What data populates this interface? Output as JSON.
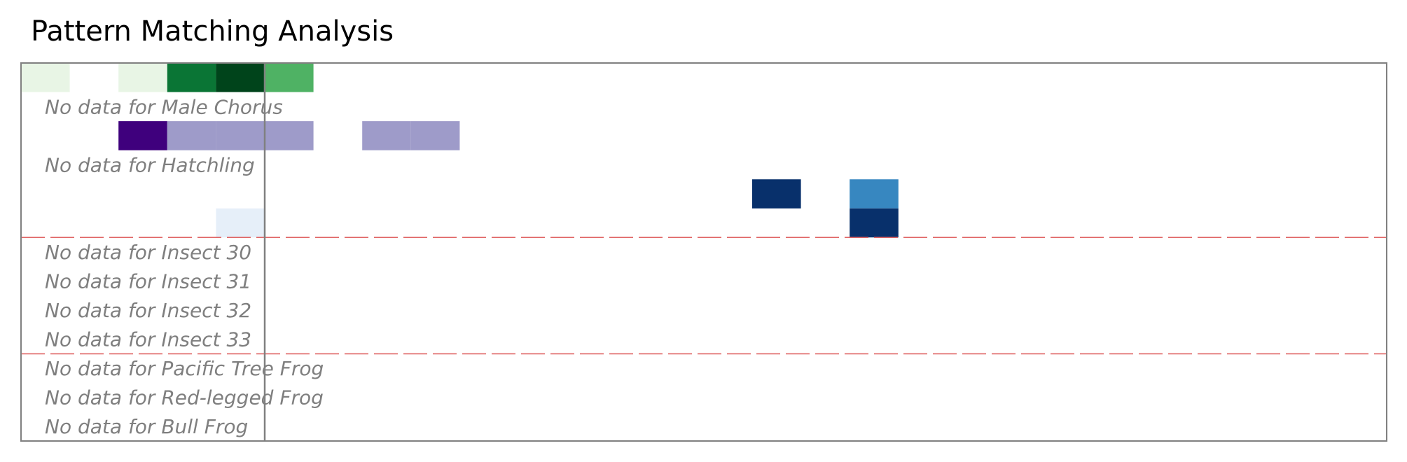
{
  "title": "Pattern Matching Analysis",
  "chart_data": {
    "type": "heatmap",
    "title": "Pattern Matching Analysis",
    "n_columns": 28,
    "grid": false,
    "vertical_line_after_column": 5,
    "rows": [
      {
        "cells": [
          {
            "col": 0,
            "color": "#e8f5e5"
          },
          {
            "col": 2,
            "color": "#e8f5e5"
          },
          {
            "col": 3,
            "color": "#0a7535"
          },
          {
            "col": 4,
            "color": "#00441b"
          },
          {
            "col": 5,
            "color": "#4fb264"
          }
        ]
      },
      {
        "label": "No data for Male Chorus",
        "cells": []
      },
      {
        "cells": [
          {
            "col": 2,
            "color": "#3f007d"
          },
          {
            "col": 3,
            "color": "#9e9bc9"
          },
          {
            "col": 4,
            "color": "#9e9bc9"
          },
          {
            "col": 5,
            "color": "#9e9bc9"
          },
          {
            "col": 7,
            "color": "#9e9bc9"
          },
          {
            "col": 8,
            "color": "#9e9bc9"
          }
        ]
      },
      {
        "label": "No data for Hatchling",
        "cells": []
      },
      {
        "cells": [
          {
            "col": 15,
            "color": "#08306b"
          },
          {
            "col": 17,
            "color": "#3787c0"
          }
        ]
      },
      {
        "cells": [
          {
            "col": 4,
            "color": "#e6eff9"
          },
          {
            "col": 17,
            "color": "#08306b"
          }
        ]
      },
      {
        "label": "No data for Insect 30",
        "cells": []
      },
      {
        "label": "No data for Insect 31",
        "cells": []
      },
      {
        "label": "No data for Insect 32",
        "cells": []
      },
      {
        "label": "No data for Insect 33",
        "cells": []
      },
      {
        "label": "No data for Pacific Tree Frog",
        "cells": []
      },
      {
        "label": "No data for Red-legged Frog",
        "cells": []
      },
      {
        "label": "No data for Bull Frog",
        "cells": []
      }
    ],
    "separators_after_rows": [
      5,
      9
    ],
    "separator_color": "#e06666",
    "frame_color": "#808080"
  }
}
